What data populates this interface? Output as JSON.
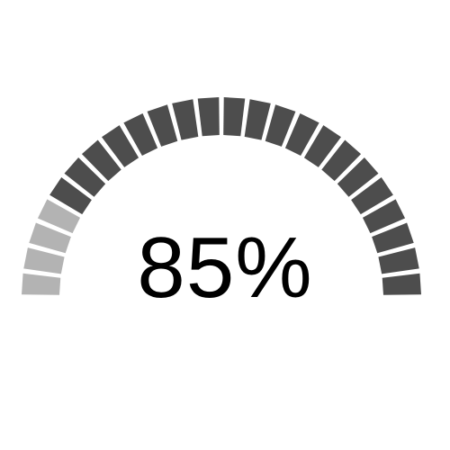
{
  "gauge": {
    "value_label": "85%",
    "level": 0.85,
    "segments": 24,
    "filled_color": "#4d4d4d",
    "empty_color": "#b3b3b3"
  }
}
